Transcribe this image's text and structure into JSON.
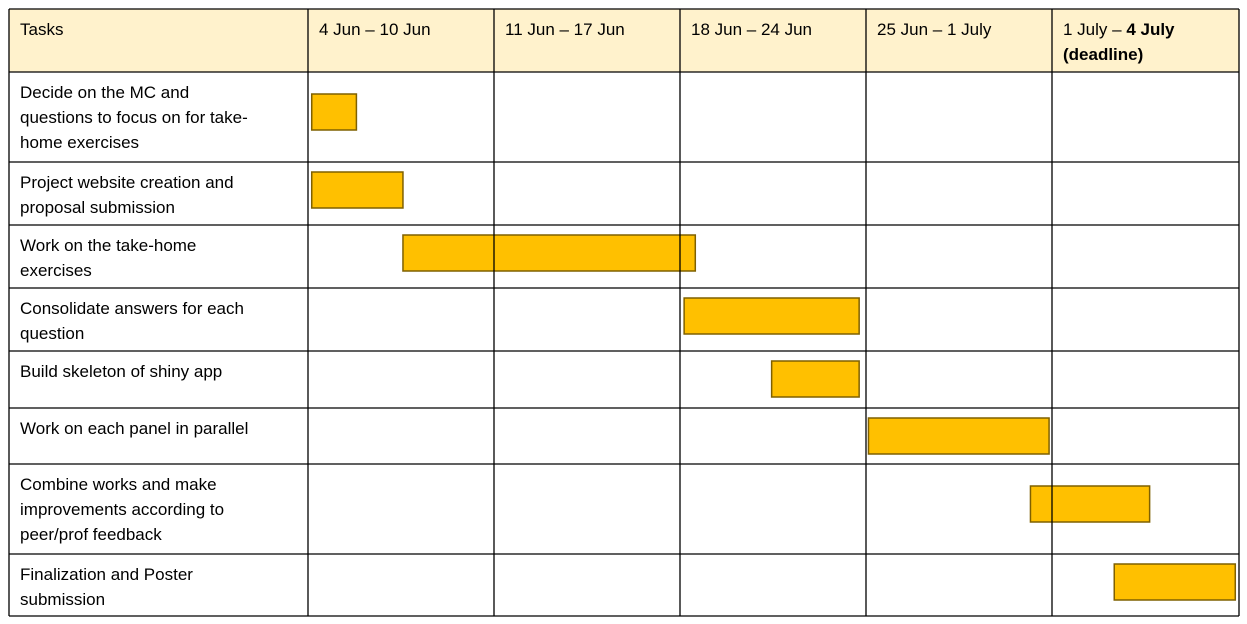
{
  "chart_data": {
    "type": "table",
    "header": {
      "task_label": "Tasks",
      "weeks": [
        {
          "lines": [
            [
              {
                "text": "4 Jun – 10 Jun"
              }
            ]
          ]
        },
        {
          "lines": [
            [
              {
                "text": "11 Jun – 17 Jun"
              }
            ]
          ]
        },
        {
          "lines": [
            [
              {
                "text": "18 Jun – 24 Jun"
              }
            ]
          ]
        },
        {
          "lines": [
            [
              {
                "text": "25 Jun – 1 July"
              }
            ]
          ]
        },
        {
          "lines": [
            [
              {
                "text": "1 July – "
              },
              {
                "text": "4 July",
                "bold": true
              }
            ],
            [
              {
                "text": "(deadline)",
                "bold": true
              }
            ]
          ]
        }
      ]
    },
    "tasks": [
      {
        "lines": [
          "Decide on the MC and",
          "questions to focus on for take-",
          "home exercises"
        ],
        "start": 0.02,
        "end": 0.26
      },
      {
        "lines": [
          "Project website creation and",
          "proposal submission"
        ],
        "start": 0.02,
        "end": 0.51
      },
      {
        "lines": [
          "Work on the take-home",
          "exercises"
        ],
        "start": 0.51,
        "end": 2.08
      },
      {
        "lines": [
          "Consolidate answers for each",
          "question"
        ],
        "start": 2.02,
        "end": 2.96
      },
      {
        "lines": [
          "Build skeleton of shiny app"
        ],
        "start": 2.49,
        "end": 2.96
      },
      {
        "lines": [
          "Work on each panel in parallel"
        ],
        "start": 3.01,
        "end": 3.98
      },
      {
        "lines": [
          "Combine works and make",
          "improvements according to",
          "peer/prof feedback"
        ],
        "start": 3.88,
        "end": 4.52
      },
      {
        "lines": [
          "Finalization and Poster",
          "submission"
        ],
        "start": 4.33,
        "end": 4.98
      }
    ],
    "colors": {
      "header_bg": "#fff2cc",
      "bar_fill": "#ffc000",
      "bar_stroke": "#7f6000",
      "grid": "#000000"
    }
  }
}
